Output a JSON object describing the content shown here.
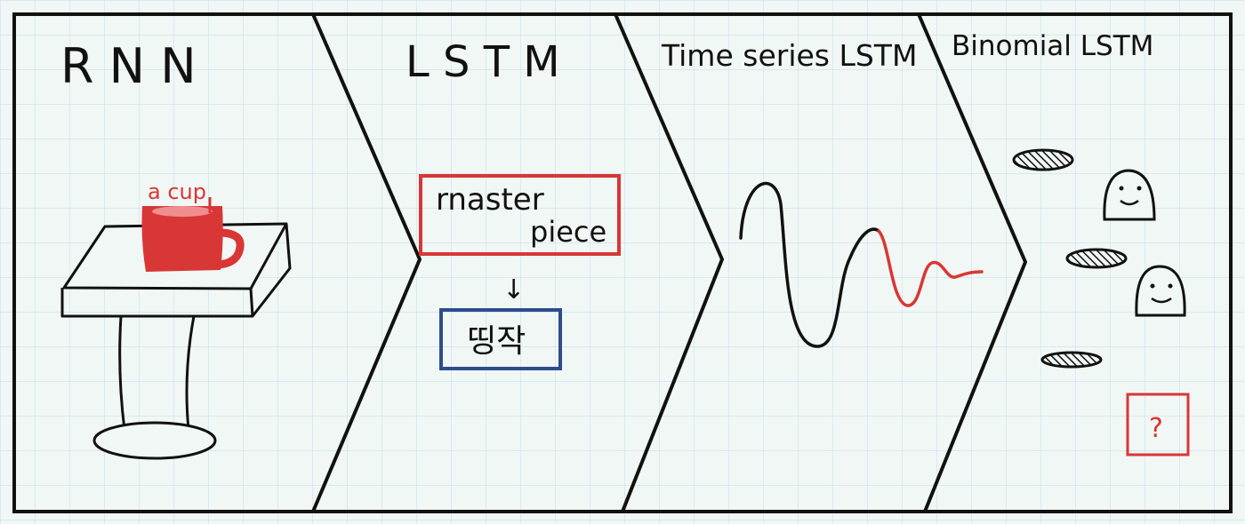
{
  "panels": [
    {
      "title": "R N N",
      "annotation": "a cup"
    },
    {
      "title": "L S T M",
      "source_text_line1": "rnaster",
      "source_text_line2": "piece",
      "arrow": "↓",
      "target_text": "띵작"
    },
    {
      "title": "Time series LSTM"
    },
    {
      "title": "Binomial LSTM",
      "unknown": "?"
    }
  ],
  "colors": {
    "ink": "#111111",
    "accent_red": "#d93636",
    "accent_blue": "#2a4d8c",
    "paper": "#f1f7f4",
    "grid": "#c9e0f2"
  }
}
